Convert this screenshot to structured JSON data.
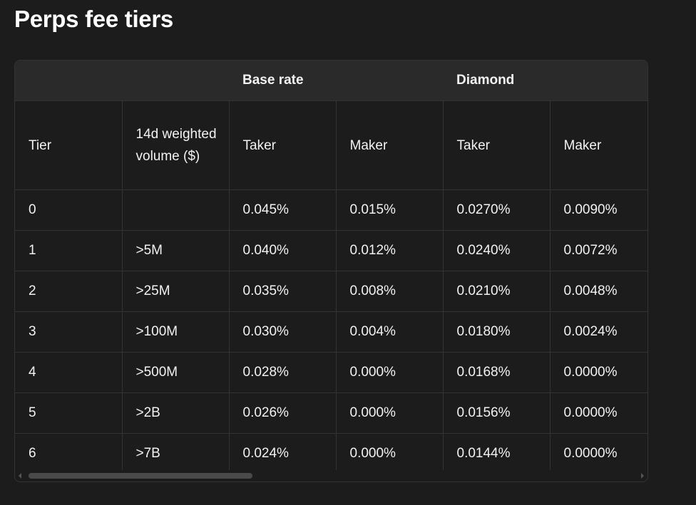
{
  "title": "Perps fee tiers",
  "table": {
    "group_headers": [
      "",
      "",
      "Base rate",
      "Diamond"
    ],
    "columns": [
      "Tier",
      "14d weighted volume ($)",
      "Taker",
      "Maker",
      "Taker",
      "Maker"
    ],
    "rows": [
      [
        "0",
        "",
        "0.045%",
        "0.015%",
        "0.0270%",
        "0.0090%"
      ],
      [
        "1",
        ">5M",
        "0.040%",
        "0.012%",
        "0.0240%",
        "0.0072%"
      ],
      [
        "2",
        ">25M",
        "0.035%",
        "0.008%",
        "0.0210%",
        "0.0048%"
      ],
      [
        "3",
        ">100M",
        "0.030%",
        "0.004%",
        "0.0180%",
        "0.0024%"
      ],
      [
        "4",
        ">500M",
        "0.028%",
        "0.000%",
        "0.0168%",
        "0.0000%"
      ],
      [
        "5",
        ">2B",
        "0.026%",
        "0.000%",
        "0.0156%",
        "0.0000%"
      ],
      [
        "6",
        ">7B",
        "0.024%",
        "0.000%",
        "0.0144%",
        "0.0000%"
      ]
    ]
  },
  "scroll": {
    "horizontal_position_percent": 0
  }
}
